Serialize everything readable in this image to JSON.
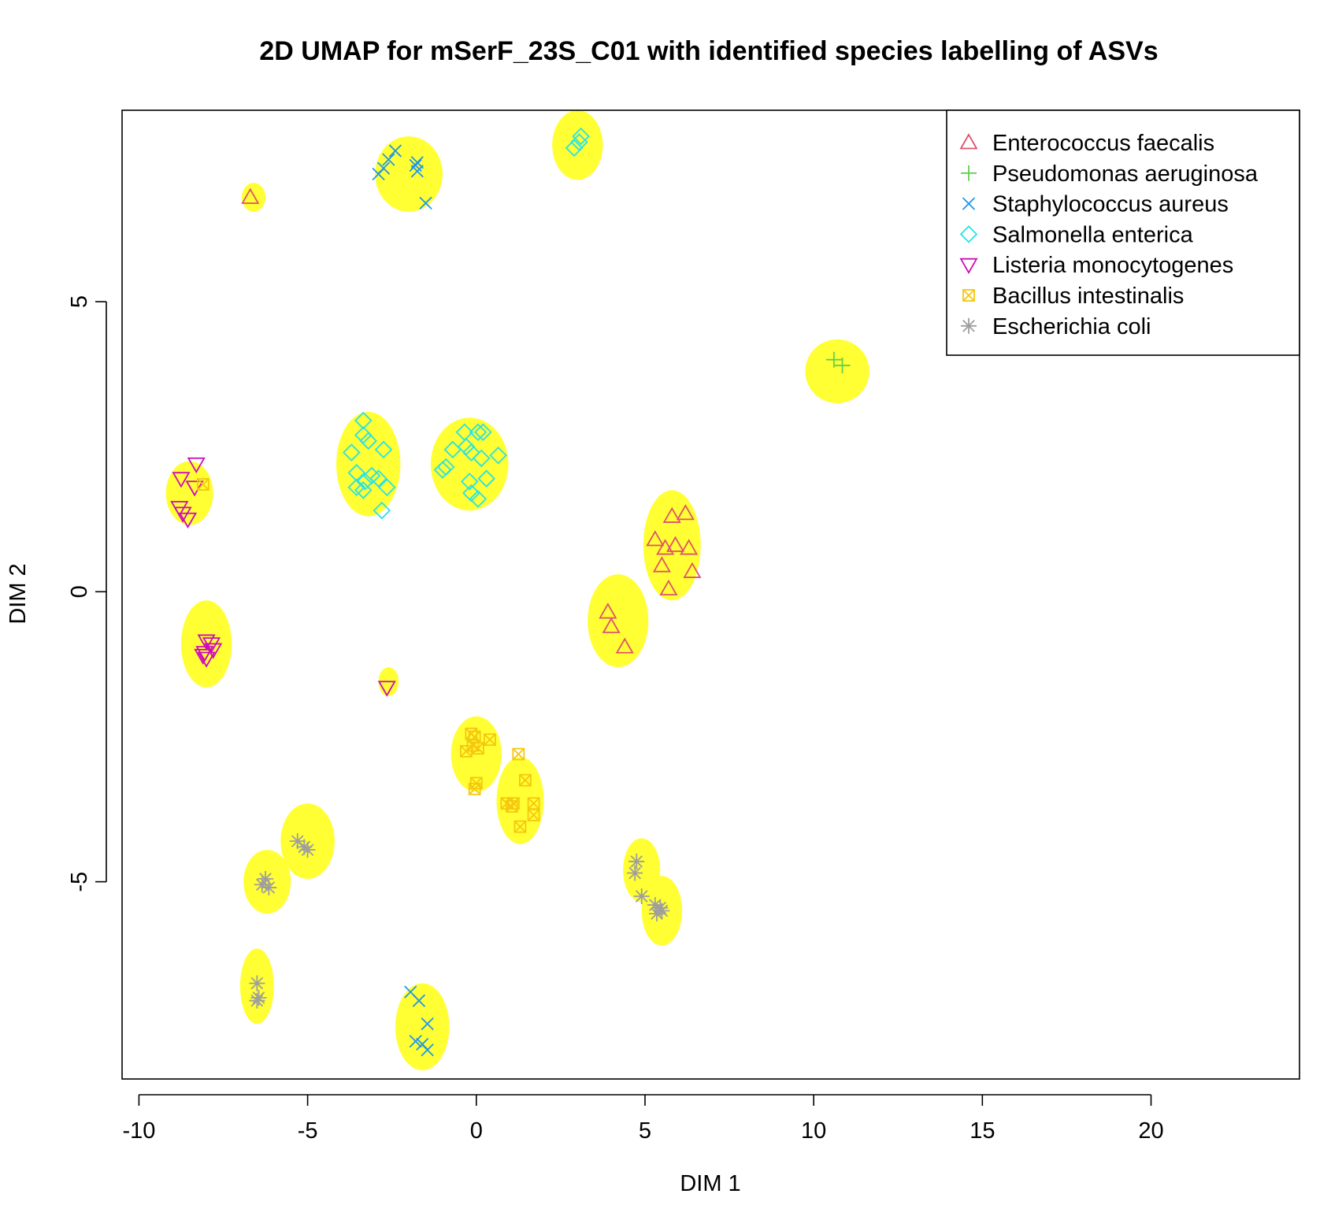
{
  "chart_data": {
    "type": "scatter",
    "title": "2D UMAP for  mSerF_23S_C01  with identified species labelling of ASVs",
    "xlabel": "DIM 1",
    "ylabel": "DIM 2",
    "xlim": [
      -10.5,
      24.4
    ],
    "ylim": [
      -8.4,
      8.3
    ],
    "xticks": [
      -10,
      -5,
      0,
      5,
      10,
      15,
      20
    ],
    "yticks": [
      -5,
      0,
      5
    ],
    "grid": false,
    "legend_position": "top-right",
    "background": {
      "color": "#ffff33",
      "clusters": [
        {
          "cx": -6.6,
          "cy": 6.8,
          "rx": 0.35,
          "ry": 0.25
        },
        {
          "cx": -2.0,
          "cy": 7.2,
          "rx": 1.0,
          "ry": 0.65
        },
        {
          "cx": 3.0,
          "cy": 7.7,
          "rx": 0.75,
          "ry": 0.6
        },
        {
          "cx": 10.7,
          "cy": 3.8,
          "rx": 0.95,
          "ry": 0.55
        },
        {
          "cx": -8.5,
          "cy": 1.7,
          "rx": 0.7,
          "ry": 0.55
        },
        {
          "cx": -3.2,
          "cy": 2.2,
          "rx": 0.95,
          "ry": 0.9
        },
        {
          "cx": -0.2,
          "cy": 2.2,
          "rx": 1.15,
          "ry": 0.8
        },
        {
          "cx": 5.8,
          "cy": 0.8,
          "rx": 0.85,
          "ry": 0.95
        },
        {
          "cx": 4.2,
          "cy": -0.5,
          "rx": 0.9,
          "ry": 0.8
        },
        {
          "cx": -8.0,
          "cy": -0.9,
          "rx": 0.75,
          "ry": 0.75
        },
        {
          "cx": -2.6,
          "cy": -1.55,
          "rx": 0.3,
          "ry": 0.25
        },
        {
          "cx": 0.0,
          "cy": -2.8,
          "rx": 0.75,
          "ry": 0.65
        },
        {
          "cx": 1.3,
          "cy": -3.6,
          "rx": 0.7,
          "ry": 0.75
        },
        {
          "cx": -5.0,
          "cy": -4.3,
          "rx": 0.8,
          "ry": 0.65
        },
        {
          "cx": -6.2,
          "cy": -5.0,
          "rx": 0.7,
          "ry": 0.55
        },
        {
          "cx": 4.9,
          "cy": -4.8,
          "rx": 0.55,
          "ry": 0.55
        },
        {
          "cx": 5.5,
          "cy": -5.5,
          "rx": 0.6,
          "ry": 0.6
        },
        {
          "cx": -6.5,
          "cy": -6.8,
          "rx": 0.5,
          "ry": 0.65
        },
        {
          "cx": -1.6,
          "cy": -7.5,
          "rx": 0.8,
          "ry": 0.75
        }
      ]
    },
    "series": [
      {
        "name": "Enterococcus faecalis",
        "color": "#df536b",
        "marker": "triangle-up",
        "points": [
          [
            -6.7,
            6.8
          ],
          [
            5.8,
            1.3
          ],
          [
            6.2,
            1.35
          ],
          [
            5.3,
            0.9
          ],
          [
            5.6,
            0.75
          ],
          [
            5.9,
            0.8
          ],
          [
            6.3,
            0.75
          ],
          [
            5.5,
            0.45
          ],
          [
            6.4,
            0.35
          ],
          [
            5.7,
            0.05
          ],
          [
            3.9,
            -0.35
          ],
          [
            4.0,
            -0.6
          ],
          [
            4.4,
            -0.95
          ]
        ]
      },
      {
        "name": "Pseudomonas aeruginosa",
        "color": "#61d04f",
        "marker": "plus",
        "points": [
          [
            10.6,
            4.0
          ],
          [
            10.85,
            3.9
          ]
        ]
      },
      {
        "name": "Staphylococcus aureus",
        "color": "#2297e6",
        "marker": "x",
        "points": [
          [
            -2.9,
            7.2
          ],
          [
            -2.75,
            7.3
          ],
          [
            -2.6,
            7.45
          ],
          [
            -2.4,
            7.6
          ],
          [
            -1.8,
            7.35
          ],
          [
            -1.75,
            7.4
          ],
          [
            -1.75,
            7.25
          ],
          [
            -1.5,
            6.7
          ],
          [
            -1.95,
            -6.9
          ],
          [
            -1.7,
            -7.05
          ],
          [
            -1.45,
            -7.45
          ],
          [
            -1.8,
            -7.75
          ],
          [
            -1.6,
            -7.8
          ],
          [
            -1.45,
            -7.9
          ]
        ]
      },
      {
        "name": "Salmonella enterica",
        "color": "#28e2e5",
        "marker": "diamond",
        "points": [
          [
            2.9,
            7.65
          ],
          [
            3.05,
            7.75
          ],
          [
            3.1,
            7.85
          ],
          [
            -3.35,
            2.95
          ],
          [
            -3.35,
            2.7
          ],
          [
            -3.2,
            2.6
          ],
          [
            -2.75,
            2.45
          ],
          [
            -3.7,
            2.4
          ],
          [
            -3.55,
            2.05
          ],
          [
            -3.1,
            2.0
          ],
          [
            -3.3,
            1.9
          ],
          [
            -2.9,
            1.95
          ],
          [
            -3.35,
            1.75
          ],
          [
            -3.55,
            1.8
          ],
          [
            -2.65,
            1.8
          ],
          [
            -2.8,
            1.4
          ],
          [
            -0.35,
            2.75
          ],
          [
            0.05,
            2.75
          ],
          [
            0.2,
            2.75
          ],
          [
            -0.3,
            2.5
          ],
          [
            -0.15,
            2.4
          ],
          [
            0.15,
            2.3
          ],
          [
            -0.7,
            2.45
          ],
          [
            0.65,
            2.35
          ],
          [
            -1.0,
            2.1
          ],
          [
            -0.9,
            2.15
          ],
          [
            0.3,
            1.95
          ],
          [
            -0.2,
            1.9
          ],
          [
            -0.15,
            1.7
          ],
          [
            0.05,
            1.6
          ]
        ]
      },
      {
        "name": "Listeria monocytogenes",
        "color": "#cd0bbc",
        "marker": "triangle-down",
        "points": [
          [
            -8.3,
            2.2
          ],
          [
            -8.75,
            1.95
          ],
          [
            -8.35,
            1.8
          ],
          [
            -8.8,
            1.45
          ],
          [
            -8.7,
            1.35
          ],
          [
            -8.55,
            1.25
          ],
          [
            -8.0,
            -0.85
          ],
          [
            -7.85,
            -0.9
          ],
          [
            -7.8,
            -1.0
          ],
          [
            -8.05,
            -1.05
          ],
          [
            -8.0,
            -1.15
          ],
          [
            -8.1,
            -1.1
          ],
          [
            -2.65,
            -1.65
          ]
        ]
      },
      {
        "name": "Bacillus intestinalis",
        "color": "#f5c710",
        "marker": "square-x",
        "points": [
          [
            -8.1,
            1.85
          ],
          [
            -0.15,
            -2.45
          ],
          [
            -0.05,
            -2.5
          ],
          [
            0.4,
            -2.55
          ],
          [
            -0.1,
            -2.65
          ],
          [
            0.05,
            -2.7
          ],
          [
            -0.3,
            -2.75
          ],
          [
            1.25,
            -2.8
          ],
          [
            0.0,
            -3.3
          ],
          [
            1.45,
            -3.25
          ],
          [
            -0.05,
            -3.4
          ],
          [
            0.9,
            -3.65
          ],
          [
            1.1,
            -3.65
          ],
          [
            1.05,
            -3.7
          ],
          [
            1.7,
            -3.65
          ],
          [
            1.7,
            -3.85
          ],
          [
            1.3,
            -4.05
          ]
        ]
      },
      {
        "name": "Escherichia coli",
        "color": "#9e9e9e",
        "marker": "asterisk",
        "points": [
          [
            -5.3,
            -4.3
          ],
          [
            -5.1,
            -4.4
          ],
          [
            -5.0,
            -4.45
          ],
          [
            -6.25,
            -4.95
          ],
          [
            -6.15,
            -5.1
          ],
          [
            -6.35,
            -5.05
          ],
          [
            4.75,
            -4.65
          ],
          [
            4.7,
            -4.85
          ],
          [
            4.9,
            -5.25
          ],
          [
            5.3,
            -5.4
          ],
          [
            5.45,
            -5.45
          ],
          [
            5.35,
            -5.55
          ],
          [
            5.5,
            -5.5
          ],
          [
            -6.5,
            -6.75
          ],
          [
            -6.5,
            -7.05
          ],
          [
            -6.45,
            -7.0
          ]
        ]
      }
    ]
  }
}
